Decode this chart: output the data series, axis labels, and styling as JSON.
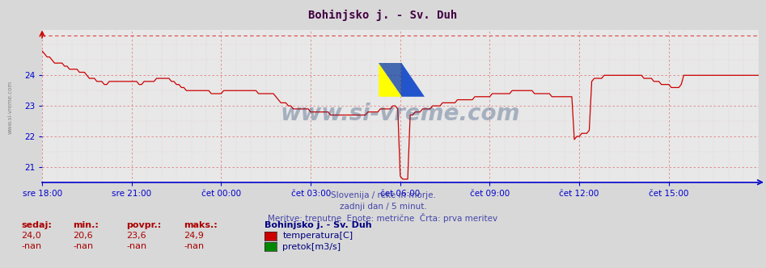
{
  "title": "Bohinjsko j. - Sv. Duh",
  "title_color": "#400040",
  "bg_color": "#d8d8d8",
  "plot_bg_color": "#e8e8e8",
  "line_color": "#cc0000",
  "dashed_line_color": "#dd4444",
  "axis_color": "#0000cc",
  "tick_label_color": "#0000cc",
  "watermark_color": "#1a3a6a",
  "subtitle_color": "#4444aa",
  "sedaj_color": "#aa0000",
  "xlim_min": 0,
  "xlim_max": 288,
  "ylim_min": 20.5,
  "ylim_max": 25.5,
  "yticks": [
    21,
    22,
    23,
    24
  ],
  "xtick_positions": [
    0,
    36,
    72,
    108,
    144,
    180,
    216,
    252
  ],
  "xtick_labels": [
    "sre 18:00",
    "sre 21:00",
    "čet 00:00",
    "čet 03:00",
    "čet 06:00",
    "čet 09:00",
    "čet 12:00",
    "čet 15:00"
  ],
  "dashed_y": 25.3,
  "subtitle_lines": [
    "Slovenija / reke in morje.",
    "zadnji dan / 5 minut.",
    "Meritve: trenutne  Enote: metrične  Črta: prva meritev"
  ],
  "stat_headers": [
    "sedaj:",
    "min.:",
    "povpr.:",
    "maks.:"
  ],
  "stat_values_temp": [
    "24,0",
    "20,6",
    "23,6",
    "24,9"
  ],
  "stat_values_flow": [
    "-nan",
    "-nan",
    "-nan",
    "-nan"
  ],
  "station_name": "Bohinjsko j. - Sv. Duh",
  "legend_items": [
    {
      "label": "temperatura[C]",
      "color": "#cc0000"
    },
    {
      "label": "pretok[m3/s]",
      "color": "#008800"
    }
  ],
  "temp_data": [
    24.8,
    24.7,
    24.6,
    24.6,
    24.5,
    24.4,
    24.4,
    24.4,
    24.4,
    24.3,
    24.3,
    24.2,
    24.2,
    24.2,
    24.2,
    24.1,
    24.1,
    24.1,
    24.0,
    23.9,
    23.9,
    23.9,
    23.8,
    23.8,
    23.8,
    23.7,
    23.7,
    23.8,
    23.8,
    23.8,
    23.8,
    23.8,
    23.8,
    23.8,
    23.8,
    23.8,
    23.8,
    23.8,
    23.8,
    23.7,
    23.7,
    23.8,
    23.8,
    23.8,
    23.8,
    23.8,
    23.9,
    23.9,
    23.9,
    23.9,
    23.9,
    23.9,
    23.8,
    23.8,
    23.7,
    23.7,
    23.6,
    23.6,
    23.5,
    23.5,
    23.5,
    23.5,
    23.5,
    23.5,
    23.5,
    23.5,
    23.5,
    23.5,
    23.4,
    23.4,
    23.4,
    23.4,
    23.4,
    23.5,
    23.5,
    23.5,
    23.5,
    23.5,
    23.5,
    23.5,
    23.5,
    23.5,
    23.5,
    23.5,
    23.5,
    23.5,
    23.5,
    23.4,
    23.4,
    23.4,
    23.4,
    23.4,
    23.4,
    23.4,
    23.3,
    23.2,
    23.1,
    23.1,
    23.1,
    23.0,
    23.0,
    22.9,
    22.9,
    22.9,
    22.9,
    22.9,
    22.9,
    22.9,
    22.8,
    22.8,
    22.8,
    22.8,
    22.8,
    22.8,
    22.8,
    22.8,
    22.7,
    22.7,
    22.7,
    22.7,
    22.7,
    22.7,
    22.7,
    22.7,
    22.7,
    22.7,
    22.7,
    22.7,
    22.7,
    22.7,
    22.7,
    22.8,
    22.8,
    22.8,
    22.8,
    22.8,
    22.9,
    22.9,
    22.9,
    22.9,
    22.9,
    23.0,
    23.0,
    22.9,
    20.7,
    20.6,
    20.6,
    20.6,
    22.7,
    22.7,
    22.8,
    22.8,
    22.8,
    22.9,
    22.9,
    22.9,
    22.9,
    23.0,
    23.0,
    23.0,
    23.0,
    23.1,
    23.1,
    23.1,
    23.1,
    23.1,
    23.1,
    23.2,
    23.2,
    23.2,
    23.2,
    23.2,
    23.2,
    23.2,
    23.3,
    23.3,
    23.3,
    23.3,
    23.3,
    23.3,
    23.3,
    23.4,
    23.4,
    23.4,
    23.4,
    23.4,
    23.4,
    23.4,
    23.4,
    23.5,
    23.5,
    23.5,
    23.5,
    23.5,
    23.5,
    23.5,
    23.5,
    23.5,
    23.4,
    23.4,
    23.4,
    23.4,
    23.4,
    23.4,
    23.4,
    23.3,
    23.3,
    23.3,
    23.3,
    23.3,
    23.3,
    23.3,
    23.3,
    23.3,
    21.9,
    22.0,
    22.0,
    22.1,
    22.1,
    22.1,
    22.2,
    23.8,
    23.9,
    23.9,
    23.9,
    23.9,
    24.0,
    24.0,
    24.0,
    24.0,
    24.0,
    24.0,
    24.0,
    24.0,
    24.0,
    24.0,
    24.0,
    24.0,
    24.0,
    24.0,
    24.0,
    24.0,
    23.9,
    23.9,
    23.9,
    23.9,
    23.8,
    23.8,
    23.8,
    23.7,
    23.7,
    23.7,
    23.7,
    23.6,
    23.6,
    23.6,
    23.6,
    23.7,
    24.0,
    24.0,
    24.0,
    24.0,
    24.0,
    24.0,
    24.0,
    24.0,
    24.0,
    24.0,
    24.0,
    24.0,
    24.0,
    24.0,
    24.0,
    24.0,
    24.0,
    24.0,
    24.0,
    24.0,
    24.0,
    24.0,
    24.0,
    24.0,
    24.0,
    24.0,
    24.0,
    24.0,
    24.0,
    24.0,
    24.0,
    24.0
  ]
}
